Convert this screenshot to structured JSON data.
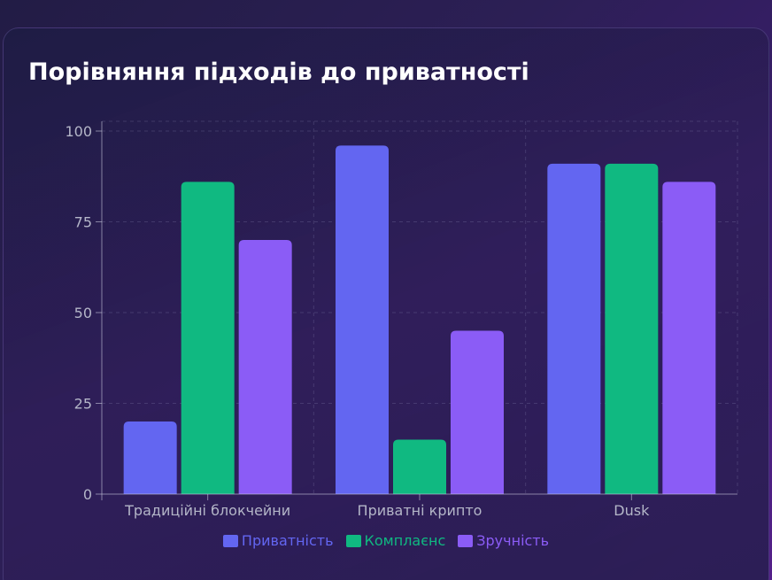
{
  "chart_data": {
    "type": "bar",
    "title": "Порівняння підходів до приватності",
    "xlabel": "",
    "ylabel": "",
    "ylim": [
      0,
      100
    ],
    "yticks": [
      0,
      25,
      50,
      75,
      100
    ],
    "categories": [
      "Традиційні блокчейни",
      "Приватні крипто",
      "Dusk"
    ],
    "series": [
      {
        "name": "Приватність",
        "color": "#6366f1",
        "values": [
          20,
          96,
          91
        ]
      },
      {
        "name": "Комплаєнс",
        "color": "#10b981",
        "values": [
          86,
          15,
          91
        ]
      },
      {
        "name": "Зручність",
        "color": "#8b5cf6",
        "values": [
          70,
          45,
          86
        ]
      }
    ],
    "grid": true,
    "legend_position": "bottom"
  }
}
